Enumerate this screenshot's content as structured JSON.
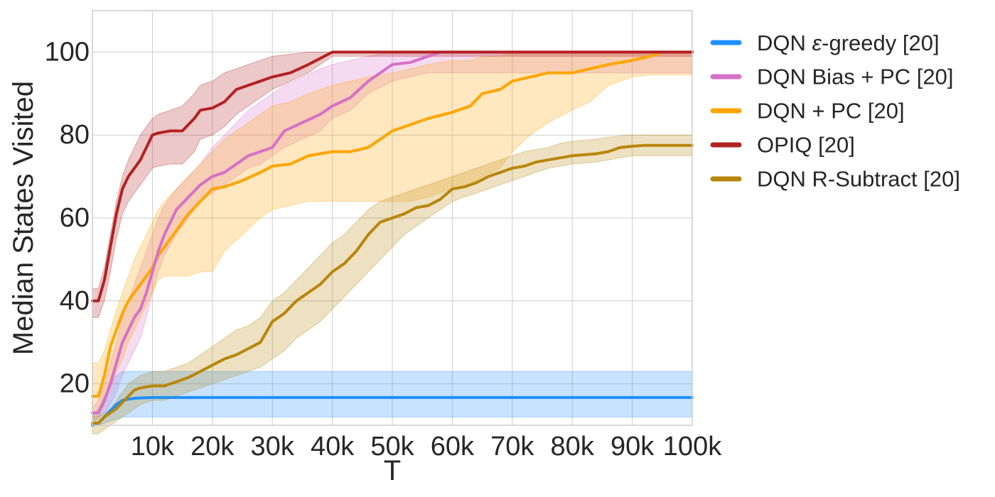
{
  "chart_data": {
    "type": "line",
    "title": "",
    "xlabel": "T",
    "ylabel": "Median States Visited",
    "xlim": [
      0,
      100000
    ],
    "ylim": [
      10,
      110
    ],
    "xticks": [
      10000,
      20000,
      30000,
      40000,
      50000,
      60000,
      70000,
      80000,
      90000,
      100000
    ],
    "xtick_labels": [
      "10k",
      "20k",
      "30k",
      "40k",
      "50k",
      "60k",
      "70k",
      "80k",
      "90k",
      "100k"
    ],
    "yticks": [
      20,
      40,
      60,
      80,
      100
    ],
    "ytick_labels": [
      "20",
      "40",
      "60",
      "80",
      "100"
    ],
    "grid": true,
    "legend_position": "outside-top-right",
    "series": [
      {
        "name": "DQN ε-greedy [20]",
        "legend_prefix": "DQN ",
        "legend_epsilon": "ε",
        "legend_suffix": "-greedy [20]",
        "color": "#1e90ff",
        "band_color": "#1e90ff",
        "x": [
          0,
          1000,
          2000,
          3000,
          4000,
          5000,
          6000,
          7000,
          8000,
          10000,
          15000,
          30000,
          60000,
          100000
        ],
        "y": [
          10,
          10.5,
          12,
          13.5,
          15,
          16,
          16.3,
          16.5,
          16.6,
          16.7,
          16.7,
          16.7,
          16.7,
          16.7
        ],
        "lower": [
          10,
          10,
          10.5,
          11,
          11.5,
          12,
          12,
          12,
          12,
          12,
          12,
          12,
          12,
          12
        ],
        "upper": [
          12,
          14,
          17,
          20,
          22,
          23,
          23,
          23,
          23,
          23,
          23,
          23,
          23,
          23
        ]
      },
      {
        "name": "DQN Bias + PC [20]",
        "color": "#d670c7",
        "band_color": "#d670c7",
        "x": [
          0,
          1000,
          2000,
          3000,
          4000,
          5000,
          6000,
          7000,
          8000,
          9000,
          10000,
          11000,
          12000,
          14000,
          16000,
          18000,
          20000,
          22000,
          24000,
          26000,
          28000,
          30000,
          32000,
          35000,
          38000,
          40000,
          43000,
          46000,
          50000,
          53000,
          56000,
          58000,
          60000,
          100000
        ],
        "y": [
          13,
          13,
          16,
          20,
          25,
          30,
          33,
          36,
          38,
          42,
          47,
          52,
          56,
          62,
          65,
          68,
          70,
          71,
          73,
          75,
          76,
          77,
          81,
          83,
          85,
          87,
          89,
          93,
          97,
          97.5,
          99,
          100,
          100,
          100
        ],
        "lower": [
          12,
          12,
          13,
          15,
          18,
          22,
          25,
          28,
          31,
          36,
          42,
          47,
          51,
          56,
          60,
          64,
          66,
          68,
          70,
          72,
          73,
          75,
          77,
          79,
          81,
          84,
          86,
          90,
          93,
          94,
          95,
          95,
          95,
          95
        ],
        "upper": [
          14,
          16,
          20,
          25,
          30,
          36,
          40,
          44,
          48,
          52,
          56,
          60,
          63,
          67,
          70,
          73,
          77,
          80,
          83,
          86,
          88,
          90,
          92,
          94,
          96,
          97,
          98,
          99,
          100,
          100,
          100,
          100,
          100,
          100
        ]
      },
      {
        "name": "DQN + PC [20]",
        "color": "#ffa500",
        "band_color": "#ffa500",
        "x": [
          0,
          1000,
          2000,
          3000,
          4000,
          5000,
          6000,
          7000,
          8000,
          9000,
          10000,
          11000,
          12000,
          14000,
          16000,
          18000,
          20000,
          22000,
          25000,
          28000,
          30000,
          33000,
          36000,
          40000,
          43000,
          46000,
          50000,
          53000,
          56000,
          60000,
          63000,
          65000,
          68000,
          70000,
          73000,
          76000,
          80000,
          83000,
          86000,
          90000,
          93000,
          95000,
          100000
        ],
        "y": [
          17,
          17,
          22,
          29,
          33,
          37,
          40,
          42,
          44,
          46,
          48,
          51,
          53,
          57,
          61,
          64,
          67,
          67.5,
          69,
          71,
          72.5,
          73,
          75,
          76,
          76,
          77,
          81,
          82.5,
          84,
          85.5,
          87,
          90,
          91,
          93,
          94,
          95,
          95,
          96,
          97,
          98,
          99,
          100,
          100
        ],
        "lower": [
          10,
          12,
          15,
          19,
          23,
          26,
          30,
          33,
          36,
          39,
          42,
          45,
          46,
          46,
          46,
          47,
          47,
          52,
          56,
          60,
          62,
          63,
          64,
          64,
          64,
          64,
          64,
          64,
          65,
          67,
          68,
          70,
          72,
          76,
          80,
          83,
          86,
          88,
          92,
          94,
          94.5,
          94.5,
          94.5
        ],
        "upper": [
          25,
          25,
          28,
          33,
          38,
          42,
          46,
          50,
          53,
          56,
          59,
          62,
          64,
          67,
          70,
          73,
          76,
          79,
          82,
          85,
          87,
          88,
          90,
          92,
          93,
          94,
          95,
          96,
          97,
          98,
          98,
          99,
          99,
          100,
          100,
          100,
          100,
          100,
          100,
          100,
          100,
          100,
          100
        ]
      },
      {
        "name": "OPIQ [20]",
        "color": "#b22222",
        "band_color": "#b22222",
        "x": [
          0,
          1000,
          2000,
          3000,
          4000,
          5000,
          6000,
          7000,
          8000,
          9000,
          10000,
          11000,
          13000,
          15000,
          17000,
          18000,
          20000,
          22000,
          24000,
          26000,
          28000,
          30000,
          33000,
          36000,
          38000,
          40000,
          45000,
          100000
        ],
        "y": [
          40,
          40,
          45,
          53,
          61,
          67,
          70,
          72,
          74,
          77,
          80,
          80.5,
          81,
          81,
          84,
          86,
          86.5,
          88,
          91,
          92,
          93,
          94,
          95,
          97,
          98.5,
          100,
          100,
          100
        ],
        "lower": [
          36,
          36,
          40,
          47,
          55,
          61,
          64,
          66,
          68,
          70,
          72,
          72.5,
          73,
          73,
          76,
          79,
          80,
          82,
          85,
          87,
          89,
          91,
          93,
          95,
          97,
          99,
          99,
          99
        ],
        "upper": [
          43,
          43,
          48,
          56,
          64,
          70,
          74,
          77,
          80,
          82,
          84,
          85,
          86,
          87,
          90,
          92,
          93,
          95,
          96,
          97,
          98,
          99,
          99.5,
          100,
          100,
          100,
          100,
          100
        ]
      },
      {
        "name": "DQN R-Subtract [20]",
        "color": "#b8860b",
        "band_color": "#b8860b",
        "x": [
          0,
          1000,
          2000,
          3000,
          4000,
          5000,
          6000,
          7000,
          8000,
          10000,
          12000,
          14000,
          16000,
          18000,
          20000,
          22000,
          24000,
          26000,
          28000,
          30000,
          32000,
          34000,
          36000,
          38000,
          40000,
          42000,
          44000,
          46000,
          48000,
          50000,
          52000,
          54000,
          56000,
          58000,
          60000,
          62000,
          64000,
          66000,
          68000,
          70000,
          72000,
          74000,
          76000,
          78000,
          80000,
          84000,
          86000,
          88000,
          90000,
          92000,
          96000,
          100000
        ],
        "y": [
          10.5,
          10.5,
          12,
          13,
          14,
          15.5,
          17,
          18.5,
          19,
          19.5,
          19.5,
          20.5,
          21.5,
          23,
          24.5,
          26,
          27,
          28.5,
          30,
          35,
          37,
          40,
          42,
          44,
          47,
          49,
          52,
          56,
          59,
          60,
          61,
          62.5,
          63,
          64.5,
          67,
          67.5,
          68.5,
          70,
          71,
          72,
          72.5,
          73.5,
          74,
          74.5,
          75,
          75.5,
          76,
          77,
          77.3,
          77.5,
          77.5,
          77.5
        ],
        "lower": [
          8,
          8,
          9,
          10,
          11,
          12,
          13,
          14,
          15,
          16,
          16,
          17,
          18,
          19,
          20,
          21,
          22,
          23,
          24,
          26,
          28,
          31,
          33,
          35,
          38,
          41,
          44,
          47,
          50,
          53,
          56,
          58,
          60,
          62,
          64,
          65,
          66,
          67,
          68,
          69,
          70,
          71,
          72,
          72.5,
          73,
          73.5,
          74,
          74.5,
          75,
          75,
          75,
          75
        ],
        "upper": [
          12,
          12,
          13,
          14,
          16,
          18,
          20,
          21,
          22,
          23,
          23,
          24,
          25,
          27,
          29,
          31,
          33,
          34,
          36,
          40,
          42,
          45,
          48,
          51,
          54,
          56,
          59,
          62,
          64,
          65,
          66,
          67,
          68,
          69,
          70,
          71,
          72,
          73,
          74,
          75,
          76,
          76.5,
          77,
          78,
          78.5,
          79,
          79.5,
          79.8,
          80,
          80,
          80,
          80
        ]
      }
    ],
    "legend_order": [
      0,
      1,
      2,
      3,
      4
    ]
  }
}
